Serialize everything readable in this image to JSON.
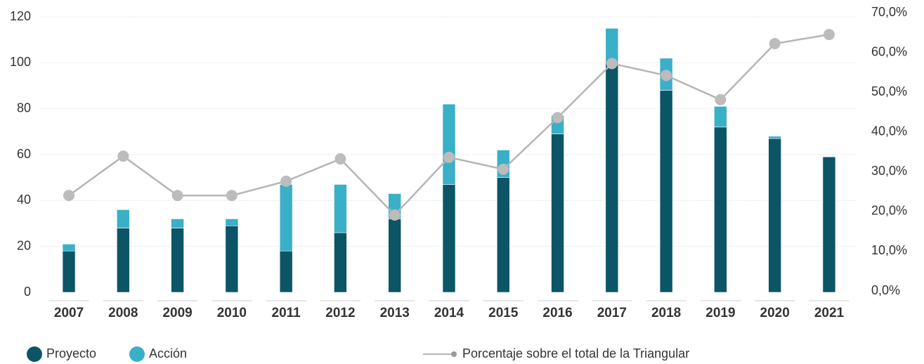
{
  "chart_data": {
    "type": "bar",
    "stacked": true,
    "categories": [
      "2007",
      "2008",
      "2009",
      "2010",
      "2011",
      "2012",
      "2013",
      "2014",
      "2015",
      "2016",
      "2017",
      "2018",
      "2019",
      "2020",
      "2021"
    ],
    "series": [
      {
        "name": "Proyecto",
        "color": "#0b5566",
        "values": [
          18,
          28,
          28,
          29,
          18,
          26,
          32,
          47,
          50,
          69,
          100,
          88,
          72,
          67,
          59
        ]
      },
      {
        "name": "Acción",
        "color": "#3aafc8",
        "values": [
          3,
          8,
          4,
          3,
          29,
          21,
          11,
          35,
          12,
          8,
          15,
          14,
          9,
          1,
          0
        ]
      },
      {
        "name": "Porcentaje sobre el total de la Triangular",
        "color": "#b5b5b5",
        "type": "line",
        "axis": "y2",
        "values": [
          24.0,
          33.9,
          24.0,
          24.0,
          27.6,
          33.2,
          19.1,
          33.6,
          30.6,
          43.6,
          57.2,
          54.2,
          48.1,
          62.2,
          64.5
        ]
      }
    ],
    "ylim": [
      0,
      120
    ],
    "yticks": [
      0,
      20,
      40,
      60,
      80,
      100,
      120
    ],
    "y2lim": [
      0,
      70
    ],
    "y2ticks": [
      {
        "value": 0,
        "label": "0,0%"
      },
      {
        "value": 10,
        "label": "10,0%"
      },
      {
        "value": 20,
        "label": "20,0%"
      },
      {
        "value": 30,
        "label": "30,0%"
      },
      {
        "value": 40,
        "label": "40,0%"
      },
      {
        "value": 50,
        "label": "50,0%"
      },
      {
        "value": 60,
        "label": "60,0%"
      },
      {
        "value": 70,
        "label": "70,0%"
      }
    ],
    "grid": true,
    "legend": "bottom-left"
  }
}
